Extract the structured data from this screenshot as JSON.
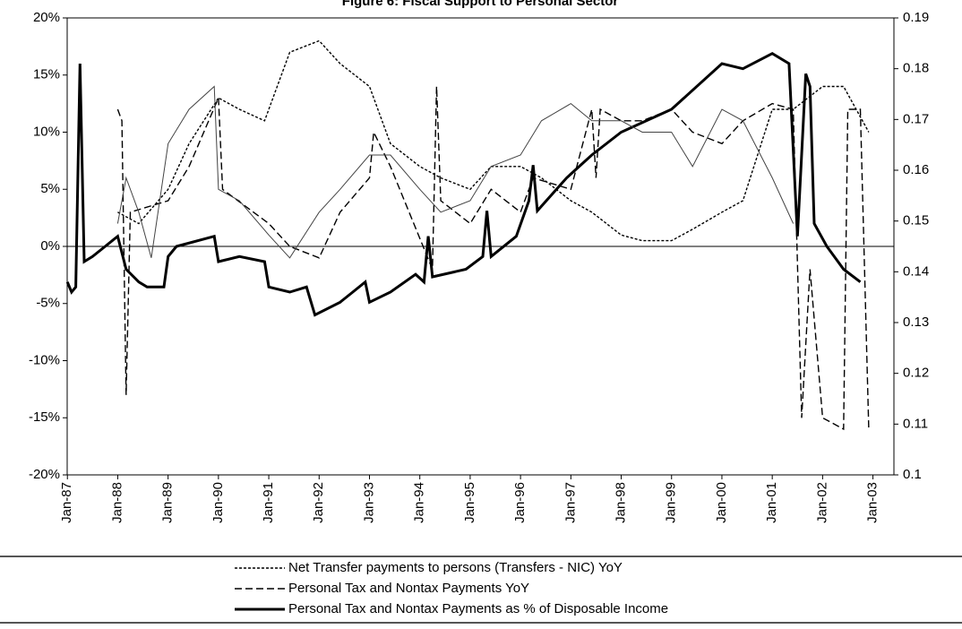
{
  "chart_data": {
    "type": "line",
    "title": "Figure 6: Fiscal Support to Personal Sector",
    "xlim": [
      "Jan-87",
      "Jun-03"
    ],
    "xticks": [
      "Jan-87",
      "Jan-88",
      "Jan-89",
      "Jan-90",
      "Jan-91",
      "Jan-92",
      "Jan-93",
      "Jan-94",
      "Jan-95",
      "Jan-96",
      "Jan-97",
      "Jan-98",
      "Jan-99",
      "Jan-00",
      "Jan-01",
      "Jan-02",
      "Jan-03"
    ],
    "ylim": [
      -20,
      20
    ],
    "yticks": [
      {
        "value": -20,
        "label": "-20%"
      },
      {
        "value": -15,
        "label": "-15%"
      },
      {
        "value": -10,
        "label": "-10%"
      },
      {
        "value": -5,
        "label": "-5%"
      },
      {
        "value": 0,
        "label": "0%"
      },
      {
        "value": 5,
        "label": "5%"
      },
      {
        "value": 10,
        "label": "10%"
      },
      {
        "value": 15,
        "label": "15%"
      },
      {
        "value": 20,
        "label": "20%"
      }
    ],
    "y2lim": [
      0.1,
      0.19
    ],
    "y2ticks": [
      0.1,
      0.11,
      0.12,
      0.13,
      0.14,
      0.15,
      0.16,
      0.17,
      0.18,
      0.19
    ],
    "series": [
      {
        "name": "Net Transfer payments to persons (Transfers - NIC) YoY",
        "color": "#000000",
        "style": "dotted",
        "x": [
          "Jan-88",
          "Jun-88",
          "Jan-89",
          "Jun-89",
          "Jan-90",
          "Jun-90",
          "Dec-90",
          "Jun-91",
          "Jan-92",
          "Jun-92",
          "Jan-93",
          "Jun-93",
          "Jan-94",
          "Jun-94",
          "Jan-95",
          "Jun-95",
          "Jan-96",
          "Jun-96",
          "Jan-97",
          "Jun-97",
          "Jan-98",
          "Jun-98",
          "Jan-99",
          "Jun-99",
          "Jan-00",
          "Jun-00",
          "Jan-01",
          "Jun-01",
          "Jan-02",
          "Jun-02",
          "Dec-02"
        ],
        "values": [
          3,
          2,
          5,
          9,
          13,
          12,
          11,
          17,
          18,
          16,
          14,
          9,
          7,
          6,
          5,
          7,
          7,
          6,
          4,
          3,
          1,
          0.5,
          0.5,
          1.5,
          3,
          4,
          12,
          12,
          14,
          14,
          10
        ]
      },
      {
        "name": "Personal Tax and Nontax Payments YoY",
        "color": "#000000",
        "style": "dashed",
        "x": [
          "Jan-88",
          "Feb-88",
          "Mar-88",
          "Apr-88",
          "Jan-89",
          "Jun-89",
          "Jan-90",
          "Feb-90",
          "Jan-91",
          "Jun-91",
          "Jan-92",
          "Jun-92",
          "Jan-93",
          "Feb-93",
          "Jun-93",
          "Apr-94",
          "May-94",
          "Jun-94",
          "Jan-95",
          "Jun-95",
          "Jan-96",
          "Apr-96",
          "Jan-97",
          "Jun-97",
          "Jul-97",
          "Aug-97",
          "Jan-98",
          "Jun-98",
          "Jan-99",
          "Jun-99",
          "Jan-00",
          "Jun-00",
          "Jan-01",
          "Jun-01",
          "Aug-01",
          "Oct-01",
          "Jan-02",
          "Jun-02",
          "Jul-02",
          "Oct-02",
          "Dec-02"
        ],
        "values": [
          12,
          11,
          -13,
          3,
          4,
          7,
          13,
          5,
          2,
          0,
          -1,
          3,
          6,
          10,
          7,
          -2,
          14,
          4,
          2,
          5,
          3,
          6,
          5,
          12,
          6,
          12,
          11,
          11,
          12,
          10,
          9,
          11,
          12.5,
          12,
          -15,
          -2,
          -15,
          -16,
          12,
          12,
          -16
        ]
      },
      {
        "name": "Personal Tax and Nontax Payments as % of Disposable Income",
        "color": "#000000",
        "style": "solid",
        "axis": "y2",
        "x": [
          "Jan-87",
          "Feb-87",
          "Mar-87",
          "Apr-87",
          "May-87",
          "Jul-87",
          "Oct-87",
          "Jan-88",
          "Mar-88",
          "Jun-88",
          "Aug-88",
          "Dec-88",
          "Jan-89",
          "Mar-89",
          "Dec-89",
          "Jan-90",
          "Jun-90",
          "Dec-90",
          "Jan-91",
          "Jun-91",
          "Oct-91",
          "Dec-91",
          "Jun-92",
          "Sep-92",
          "Dec-92",
          "Jan-93",
          "Jun-93",
          "Dec-93",
          "Feb-94",
          "Mar-94",
          "Apr-94",
          "Dec-94",
          "Apr-95",
          "May-95",
          "Jun-95",
          "Dec-95",
          "Mar-96",
          "Apr-96",
          "May-96",
          "Dec-96",
          "Jun-97",
          "Jan-98",
          "Jan-99",
          "Jan-00",
          "Jun-00",
          "Jan-01",
          "May-01",
          "Jul-01",
          "Sep-01",
          "Oct-01",
          "Nov-01",
          "Feb-02",
          "Jun-02",
          "Oct-02"
        ],
        "values": [
          0.138,
          0.136,
          0.137,
          0.181,
          0.142,
          0.143,
          0.145,
          0.147,
          0.1405,
          0.138,
          0.137,
          0.137,
          0.143,
          0.145,
          0.147,
          0.142,
          0.143,
          0.142,
          0.137,
          0.136,
          0.137,
          0.1315,
          0.134,
          0.136,
          0.138,
          0.134,
          0.136,
          0.1395,
          0.138,
          0.147,
          0.139,
          0.1405,
          0.143,
          0.152,
          0.143,
          0.147,
          0.154,
          0.161,
          0.152,
          0.1585,
          0.163,
          0.1675,
          0.172,
          0.181,
          0.18,
          0.183,
          0.181,
          0.147,
          0.179,
          0.1765,
          0.1495,
          0.145,
          0.1405,
          0.138
        ]
      },
      {
        "color": "#444444",
        "style": "thin",
        "x": [
          "Jan-88",
          "Mar-88",
          "Jun-88",
          "Sep-88",
          "Jan-89",
          "Jun-89",
          "Dec-89",
          "Jan-90",
          "Jun-90",
          "Jan-91",
          "Jun-91",
          "Jan-92",
          "Jun-92",
          "Jan-93",
          "Jun-93",
          "Jan-94",
          "Jun-94",
          "Jan-95",
          "Jun-95",
          "Jan-96",
          "Jun-96",
          "Jan-97",
          "Jun-97",
          "Jan-98",
          "Jun-98",
          "Jan-99",
          "Jun-99",
          "Jan-00",
          "Jun-00",
          "Jan-01",
          "Jun-01"
        ],
        "values": [
          2,
          6,
          3,
          -1,
          9,
          12,
          14,
          5,
          4,
          1,
          -1,
          3,
          5,
          8,
          8,
          5,
          3,
          4,
          7,
          8,
          11,
          12.5,
          11,
          11,
          10,
          10,
          7,
          12,
          11,
          6,
          2
        ]
      }
    ]
  }
}
